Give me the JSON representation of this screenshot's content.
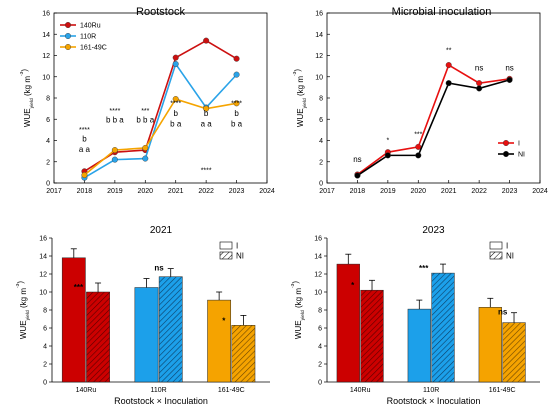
{
  "chart_data": [
    {
      "type": "line",
      "title": "Rootstock",
      "xlabel": "",
      "ylabel_main": "WUE",
      "ylabel_sub": "yield",
      "ylabel_unit": "(kg m",
      "ylabel_exp": "-3",
      "ylabel_close": ")",
      "xlim": [
        2017,
        2024
      ],
      "ylim": [
        0,
        16
      ],
      "xticks": [
        "2017",
        "2018",
        "2019",
        "2020",
        "2021",
        "2022",
        "2023",
        "2024"
      ],
      "yticks": [
        "0",
        "2",
        "4",
        "6",
        "8",
        "10",
        "12",
        "14",
        "16"
      ],
      "x": [
        2018,
        2019,
        2020,
        2021,
        2022,
        2023
      ],
      "series": [
        {
          "name": "140Ru",
          "color": "#cc1010",
          "values": [
            1.1,
            2.9,
            3.1,
            11.8,
            13.4,
            11.7
          ]
        },
        {
          "name": "110R",
          "color": "#2aa3e8",
          "values": [
            0.5,
            2.2,
            2.3,
            11.2,
            7.1,
            10.2
          ]
        },
        {
          "name": "161-49C",
          "color": "#f5a400",
          "values": [
            0.75,
            3.1,
            3.3,
            7.9,
            7.0,
            7.5
          ]
        }
      ],
      "legend_position": "top-left",
      "annotations": [
        {
          "x": 2018,
          "y": 4.8,
          "text": "****"
        },
        {
          "x": 2018,
          "y": 3.9,
          "text": "b"
        },
        {
          "x": 2018,
          "y": 2.9,
          "text": "a a"
        },
        {
          "x": 2019,
          "y": 6.6,
          "text": "****"
        },
        {
          "x": 2019,
          "y": 5.7,
          "text": "b b a"
        },
        {
          "x": 2020,
          "y": 6.6,
          "text": "***"
        },
        {
          "x": 2020,
          "y": 5.7,
          "text": "b b a"
        },
        {
          "x": 2021,
          "y": 7.3,
          "text": "****"
        },
        {
          "x": 2021,
          "y": 6.3,
          "text": "b"
        },
        {
          "x": 2021,
          "y": 5.3,
          "text": "b a"
        },
        {
          "x": 2022,
          "y": 6.3,
          "text": "b"
        },
        {
          "x": 2022,
          "y": 5.3,
          "text": "a a"
        },
        {
          "x": 2022,
          "y": 1.0,
          "text": "****"
        },
        {
          "x": 2023,
          "y": 7.3,
          "text": "****"
        },
        {
          "x": 2023,
          "y": 6.3,
          "text": "b"
        },
        {
          "x": 2023,
          "y": 5.3,
          "text": "b a"
        }
      ]
    },
    {
      "type": "line",
      "title": "Microbial inoculation",
      "xlabel": "",
      "ylabel_main": "WUE",
      "ylabel_sub": "yield",
      "ylabel_unit": "(kg m",
      "ylabel_exp": "-3",
      "ylabel_close": ")",
      "xlim": [
        2017,
        2024
      ],
      "ylim": [
        0,
        16
      ],
      "xticks": [
        "2017",
        "2018",
        "2019",
        "2020",
        "2021",
        "2022",
        "2023",
        "2024"
      ],
      "yticks": [
        "0",
        "2",
        "4",
        "6",
        "8",
        "10",
        "12",
        "14",
        "16"
      ],
      "x": [
        2018,
        2019,
        2020,
        2021,
        2022,
        2023
      ],
      "series": [
        {
          "name": "I",
          "color": "#e81010",
          "values": [
            0.8,
            2.9,
            3.4,
            11.1,
            9.4,
            9.8
          ]
        },
        {
          "name": "NI",
          "color": "#000000",
          "values": [
            0.7,
            2.6,
            2.6,
            9.4,
            8.9,
            9.7
          ]
        }
      ],
      "legend_position": "bottom-right",
      "annotations": [
        {
          "x": 2018,
          "y": 2.0,
          "text": "ns"
        },
        {
          "x": 2019,
          "y": 3.8,
          "text": "*"
        },
        {
          "x": 2020,
          "y": 4.4,
          "text": "***"
        },
        {
          "x": 2021,
          "y": 12.3,
          "text": "**"
        },
        {
          "x": 2022,
          "y": 10.6,
          "text": "ns"
        },
        {
          "x": 2023,
          "y": 10.6,
          "text": "ns"
        }
      ]
    },
    {
      "type": "bar",
      "title": "2021",
      "xlabel": "Rootstock × Inoculation",
      "ylabel_main": "WUE",
      "ylabel_sub": "yield",
      "ylabel_unit": "(kg m",
      "ylabel_exp": "-3",
      "ylabel_close": ")",
      "ylim": [
        0,
        16
      ],
      "yticks": [
        "0",
        "2",
        "4",
        "6",
        "8",
        "10",
        "12",
        "14",
        "16"
      ],
      "categories": [
        "140Ru",
        "110R",
        "161-49C"
      ],
      "category_colors": [
        "#cc0000",
        "#1ca0ea",
        "#f5a300"
      ],
      "series": [
        {
          "name": "I",
          "pattern": "solid",
          "values": [
            13.8,
            10.5,
            9.1
          ],
          "errors": [
            1.0,
            1.0,
            0.9
          ]
        },
        {
          "name": "NI",
          "pattern": "hatched",
          "values": [
            10.0,
            11.7,
            6.3
          ],
          "errors": [
            1.0,
            0.9,
            1.1
          ]
        }
      ],
      "legend_position": "top-right",
      "significance": [
        "***",
        "ns",
        "*"
      ]
    },
    {
      "type": "bar",
      "title": "2023",
      "xlabel": "Rootstock × Inoculation",
      "ylabel_main": "WUE",
      "ylabel_sub": "yield",
      "ylabel_unit": "(kg m",
      "ylabel_exp": "-3",
      "ylabel_close": ")",
      "ylim": [
        0,
        16
      ],
      "yticks": [
        "0",
        "2",
        "4",
        "6",
        "8",
        "10",
        "12",
        "14",
        "16"
      ],
      "categories": [
        "140Ru",
        "110R",
        "161-49C"
      ],
      "category_colors": [
        "#cc0000",
        "#1ca0ea",
        "#f5a300"
      ],
      "series": [
        {
          "name": "I",
          "pattern": "solid",
          "values": [
            13.1,
            8.1,
            8.3
          ],
          "errors": [
            1.1,
            1.0,
            1.0
          ]
        },
        {
          "name": "NI",
          "pattern": "hatched",
          "values": [
            10.2,
            12.1,
            6.6
          ],
          "errors": [
            1.1,
            1.0,
            1.1
          ]
        }
      ],
      "legend_position": "top-right",
      "significance": [
        "*",
        "***",
        "ns"
      ]
    }
  ]
}
